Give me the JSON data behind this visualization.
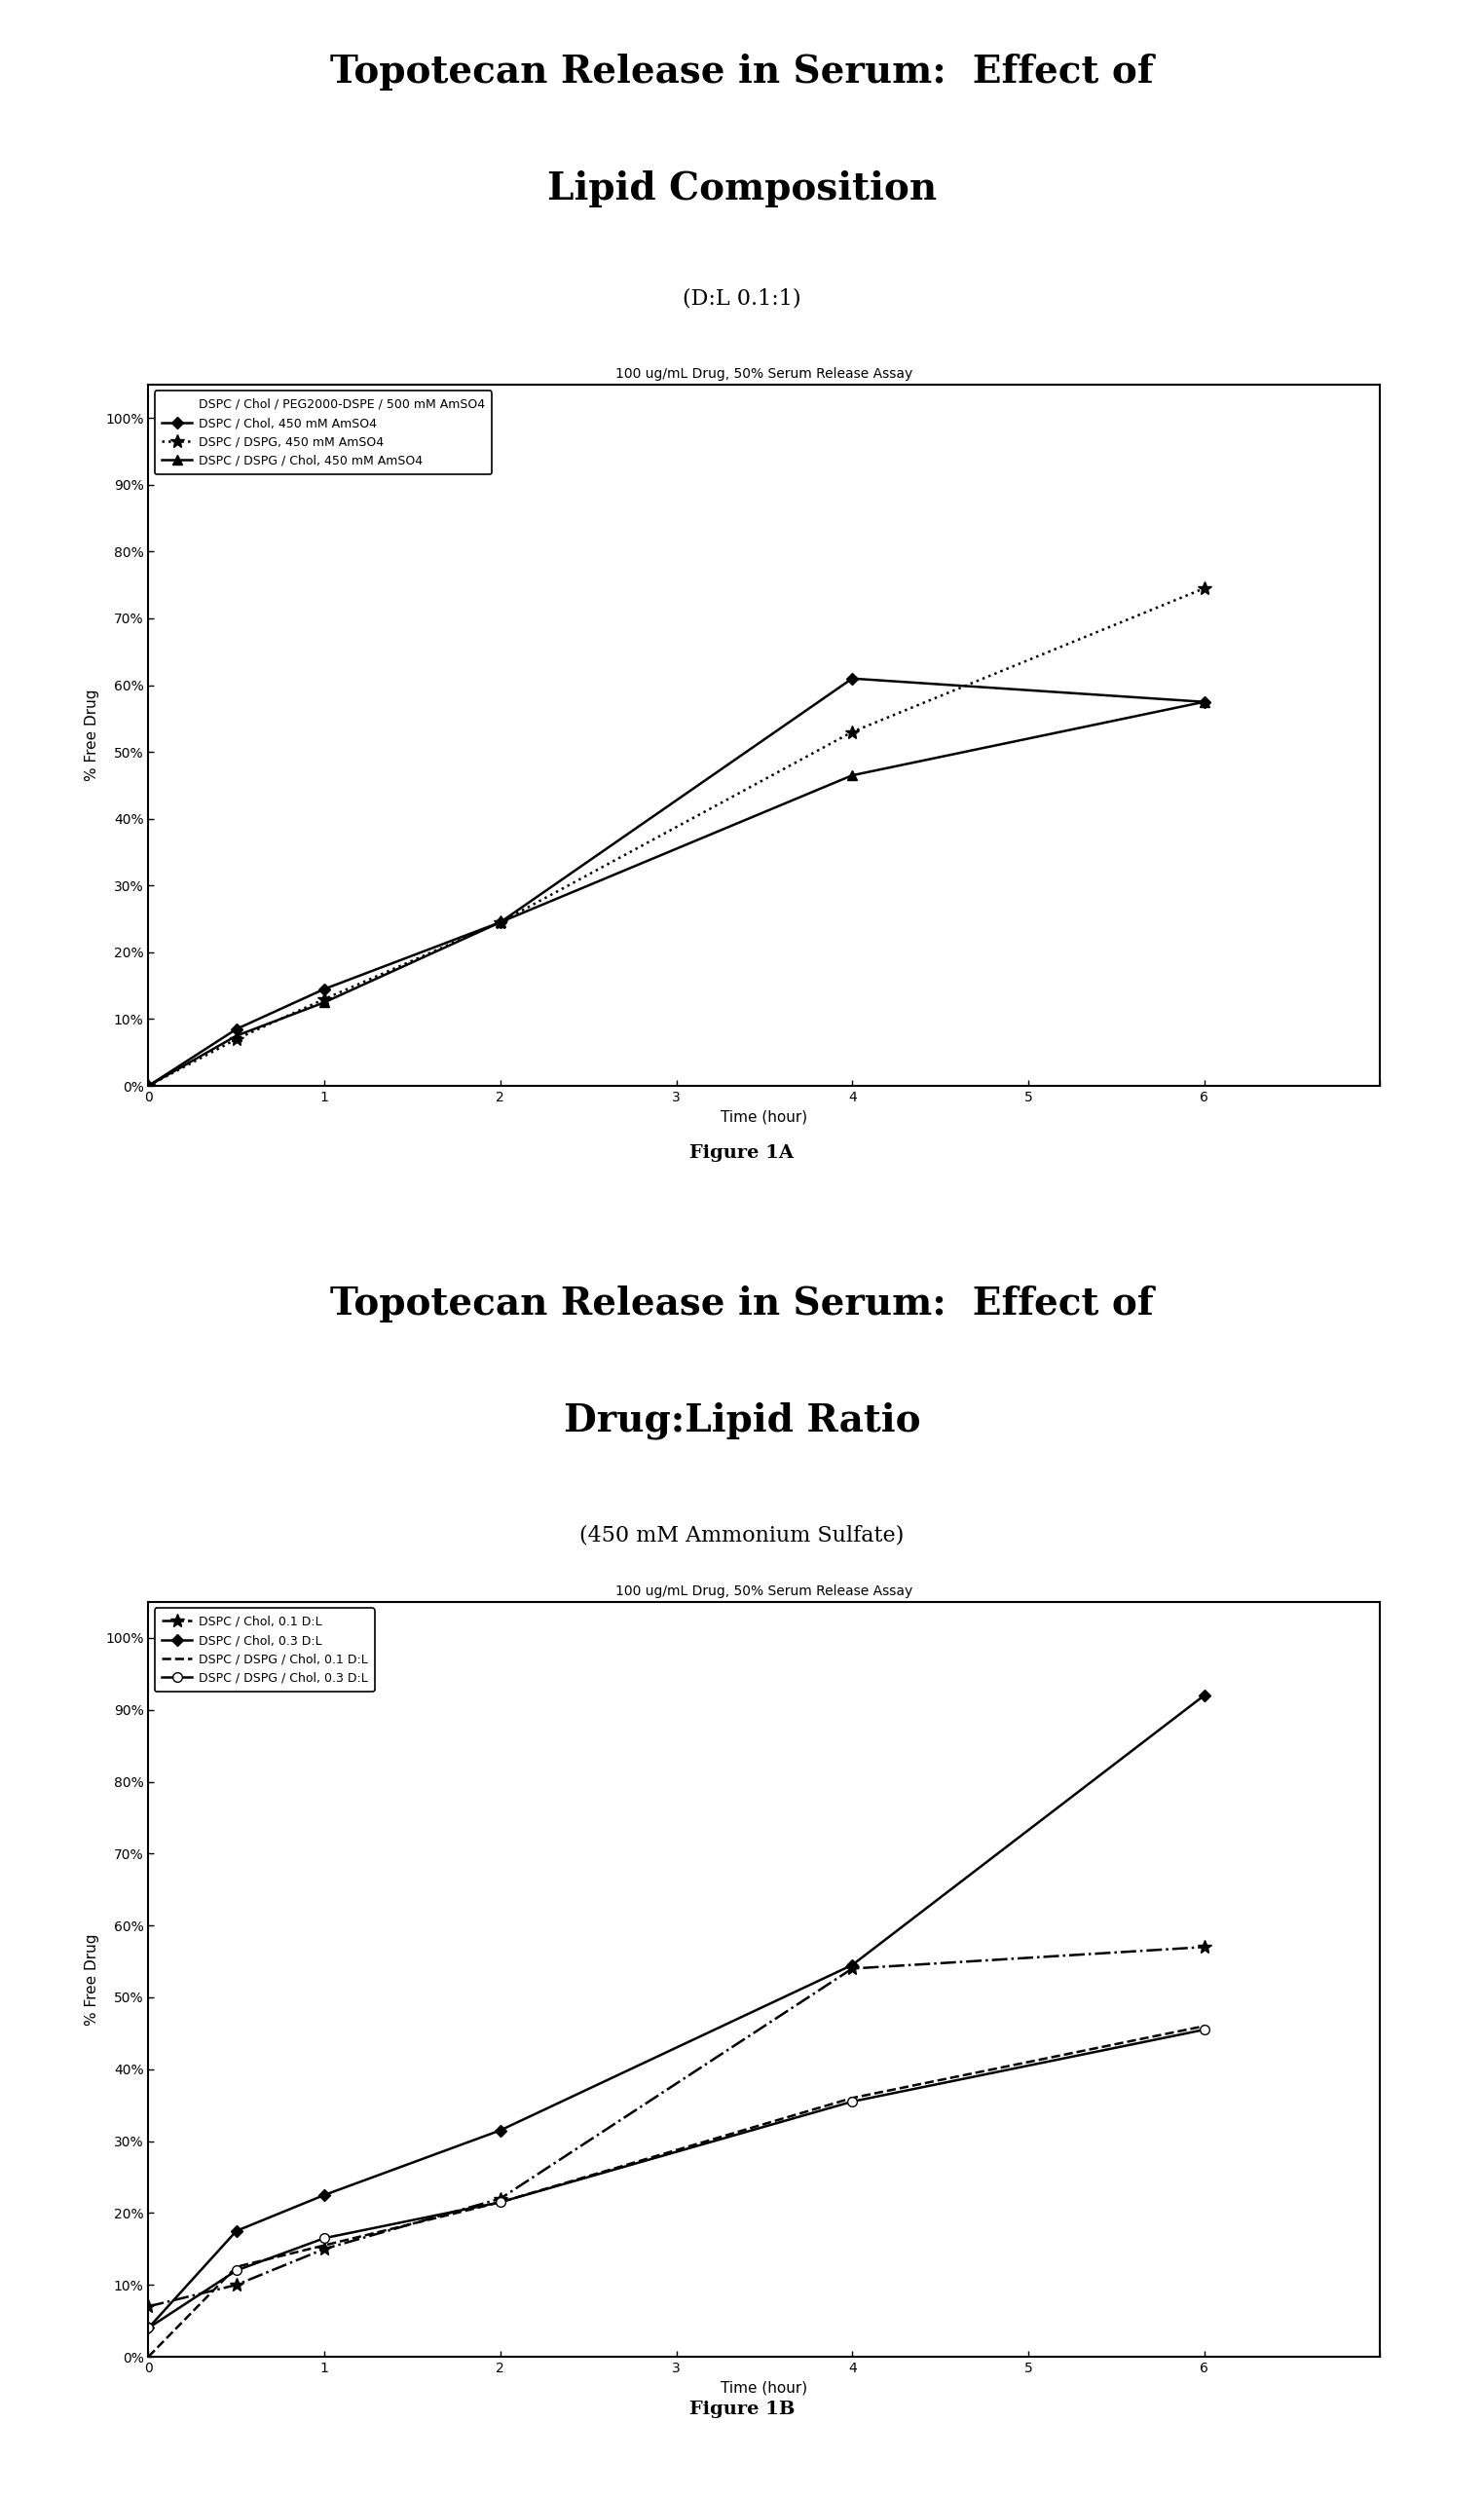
{
  "fig1a": {
    "title_line1": "Topotecan Release in Serum:  Effect of",
    "title_line2": "Lipid Composition",
    "subtitle": "(D:L 0.1:1)",
    "chart_title": "100 ug/mL Drug, 50% Serum Release Assay",
    "xlabel": "Time (hour)",
    "ylabel": "% Free Drug",
    "xlim": [
      0,
      7
    ],
    "ylim": [
      0,
      1.05
    ],
    "yticks": [
      0,
      0.1,
      0.2,
      0.3,
      0.4,
      0.5,
      0.6,
      0.7,
      0.8,
      0.9,
      1.0
    ],
    "ytick_labels": [
      "0%",
      "10%",
      "20%",
      "30%",
      "40%",
      "50%",
      "60%",
      "70%",
      "80%",
      "90%",
      "100%"
    ],
    "xticks": [
      0,
      1,
      2,
      3,
      4,
      5,
      6,
      7
    ],
    "series": [
      {
        "label": "DSPC / Chol / PEG2000-DSPE / 500 mM AmSO4",
        "x": [],
        "y": [],
        "linestyle": "-",
        "marker": null,
        "markersize": 0,
        "color": "#000000",
        "linewidth": 1.5,
        "legend_handle": {
          "linestyle": "-",
          "marker": null,
          "color": "#000000"
        }
      },
      {
        "label": "DSPC / Chol, 450 mM AmSO4",
        "x": [
          0,
          0.5,
          1,
          2,
          4,
          6
        ],
        "y": [
          0.0,
          0.085,
          0.145,
          0.245,
          0.61,
          0.575
        ],
        "linestyle": "-",
        "marker": "D",
        "markersize": 6,
        "color": "#000000",
        "linewidth": 1.8
      },
      {
        "label": "DSPC / DSPG, 450 mM AmSO4",
        "x": [
          0,
          0.5,
          1,
          2,
          4,
          6
        ],
        "y": [
          0.0,
          0.07,
          0.13,
          0.245,
          0.53,
          0.745
        ],
        "linestyle": ":",
        "marker": "*",
        "markersize": 10,
        "color": "#000000",
        "linewidth": 1.8
      },
      {
        "label": "DSPC / DSPG / Chol, 450 mM AmSO4",
        "x": [
          0,
          0.5,
          1,
          2,
          4,
          6
        ],
        "y": [
          0.0,
          0.075,
          0.125,
          0.245,
          0.465,
          0.575
        ],
        "linestyle": "-",
        "marker": "^",
        "markersize": 7,
        "color": "#000000",
        "linewidth": 1.8
      }
    ],
    "figure_label": "Figure 1A"
  },
  "fig1b": {
    "title_line1": "Topotecan Release in Serum:  Effect of",
    "title_line2": "Drug:Lipid Ratio",
    "subtitle": "(450 mM Ammonium Sulfate)",
    "chart_title": "100 ug/mL Drug, 50% Serum Release Assay",
    "xlabel": "Time (hour)",
    "ylabel": "% Free Drug",
    "xlim": [
      0,
      7
    ],
    "ylim": [
      0,
      1.05
    ],
    "yticks": [
      0,
      0.1,
      0.2,
      0.3,
      0.4,
      0.5,
      0.6,
      0.7,
      0.8,
      0.9,
      1.0
    ],
    "ytick_labels": [
      "0%",
      "10%",
      "20%",
      "30%",
      "40%",
      "50%",
      "60%",
      "70%",
      "80%",
      "90%",
      "100%"
    ],
    "xticks": [
      0,
      1,
      2,
      3,
      4,
      5,
      6,
      7
    ],
    "series": [
      {
        "label": "DSPC / Chol, 0.1 D:L",
        "x": [
          0,
          0.5,
          1,
          2,
          4,
          6
        ],
        "y": [
          0.07,
          0.1,
          0.15,
          0.22,
          0.54,
          0.57
        ],
        "linestyle": "-.",
        "marker": "*",
        "markersize": 10,
        "color": "#000000",
        "linewidth": 1.8
      },
      {
        "label": "DSPC / Chol, 0.3 D:L",
        "x": [
          0,
          0.5,
          1,
          2,
          4,
          6
        ],
        "y": [
          0.04,
          0.175,
          0.225,
          0.315,
          0.545,
          0.92
        ],
        "linestyle": "-",
        "marker": "D",
        "markersize": 6,
        "color": "#000000",
        "linewidth": 1.8
      },
      {
        "label": "DSPC / DSPG / Chol, 0.1 D:L",
        "x": [
          0,
          0.5,
          1,
          2,
          4,
          6
        ],
        "y": [
          0.0,
          0.125,
          0.155,
          0.215,
          0.36,
          0.46
        ],
        "linestyle": "--",
        "marker": null,
        "markersize": 0,
        "color": "#000000",
        "linewidth": 1.8
      },
      {
        "label": "DSPC / DSPG / Chol, 0.3 D:L",
        "x": [
          0,
          0.5,
          1,
          2,
          4,
          6
        ],
        "y": [
          0.04,
          0.12,
          0.165,
          0.215,
          0.355,
          0.455
        ],
        "linestyle": "-",
        "marker": "o",
        "markersize": 7,
        "color": "#000000",
        "linewidth": 1.8,
        "markerfacecolor": "white"
      }
    ],
    "figure_label": "Figure 1B"
  },
  "title_fontsize": 28,
  "subtitle_fontsize": 16,
  "figure_label_fontsize": 14,
  "chart_title_fontsize": 10,
  "tick_fontsize": 10,
  "axis_label_fontsize": 11,
  "legend_fontsize": 9
}
